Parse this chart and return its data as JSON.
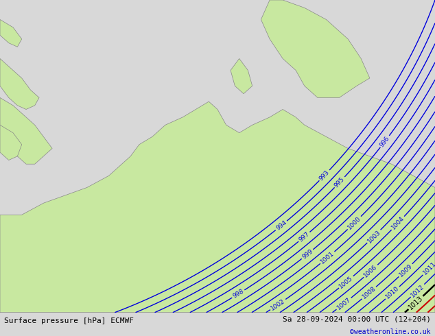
{
  "title_left": "Surface pressure [hPa] ECMWF",
  "title_right": "Sa 28-09-2024 00:00 UTC (12+204)",
  "title_right2": "©weatheronline.co.uk",
  "land_color": "#c8e8a0",
  "sea_color": "#d8d8d8",
  "blue_contour_color": "#0000dd",
  "black_contour_color": "#000000",
  "red_contour_color": "#cc0000",
  "figsize": [
    6.34,
    4.9
  ],
  "dpi": 100,
  "bottom_bar_color": "#ffffff"
}
